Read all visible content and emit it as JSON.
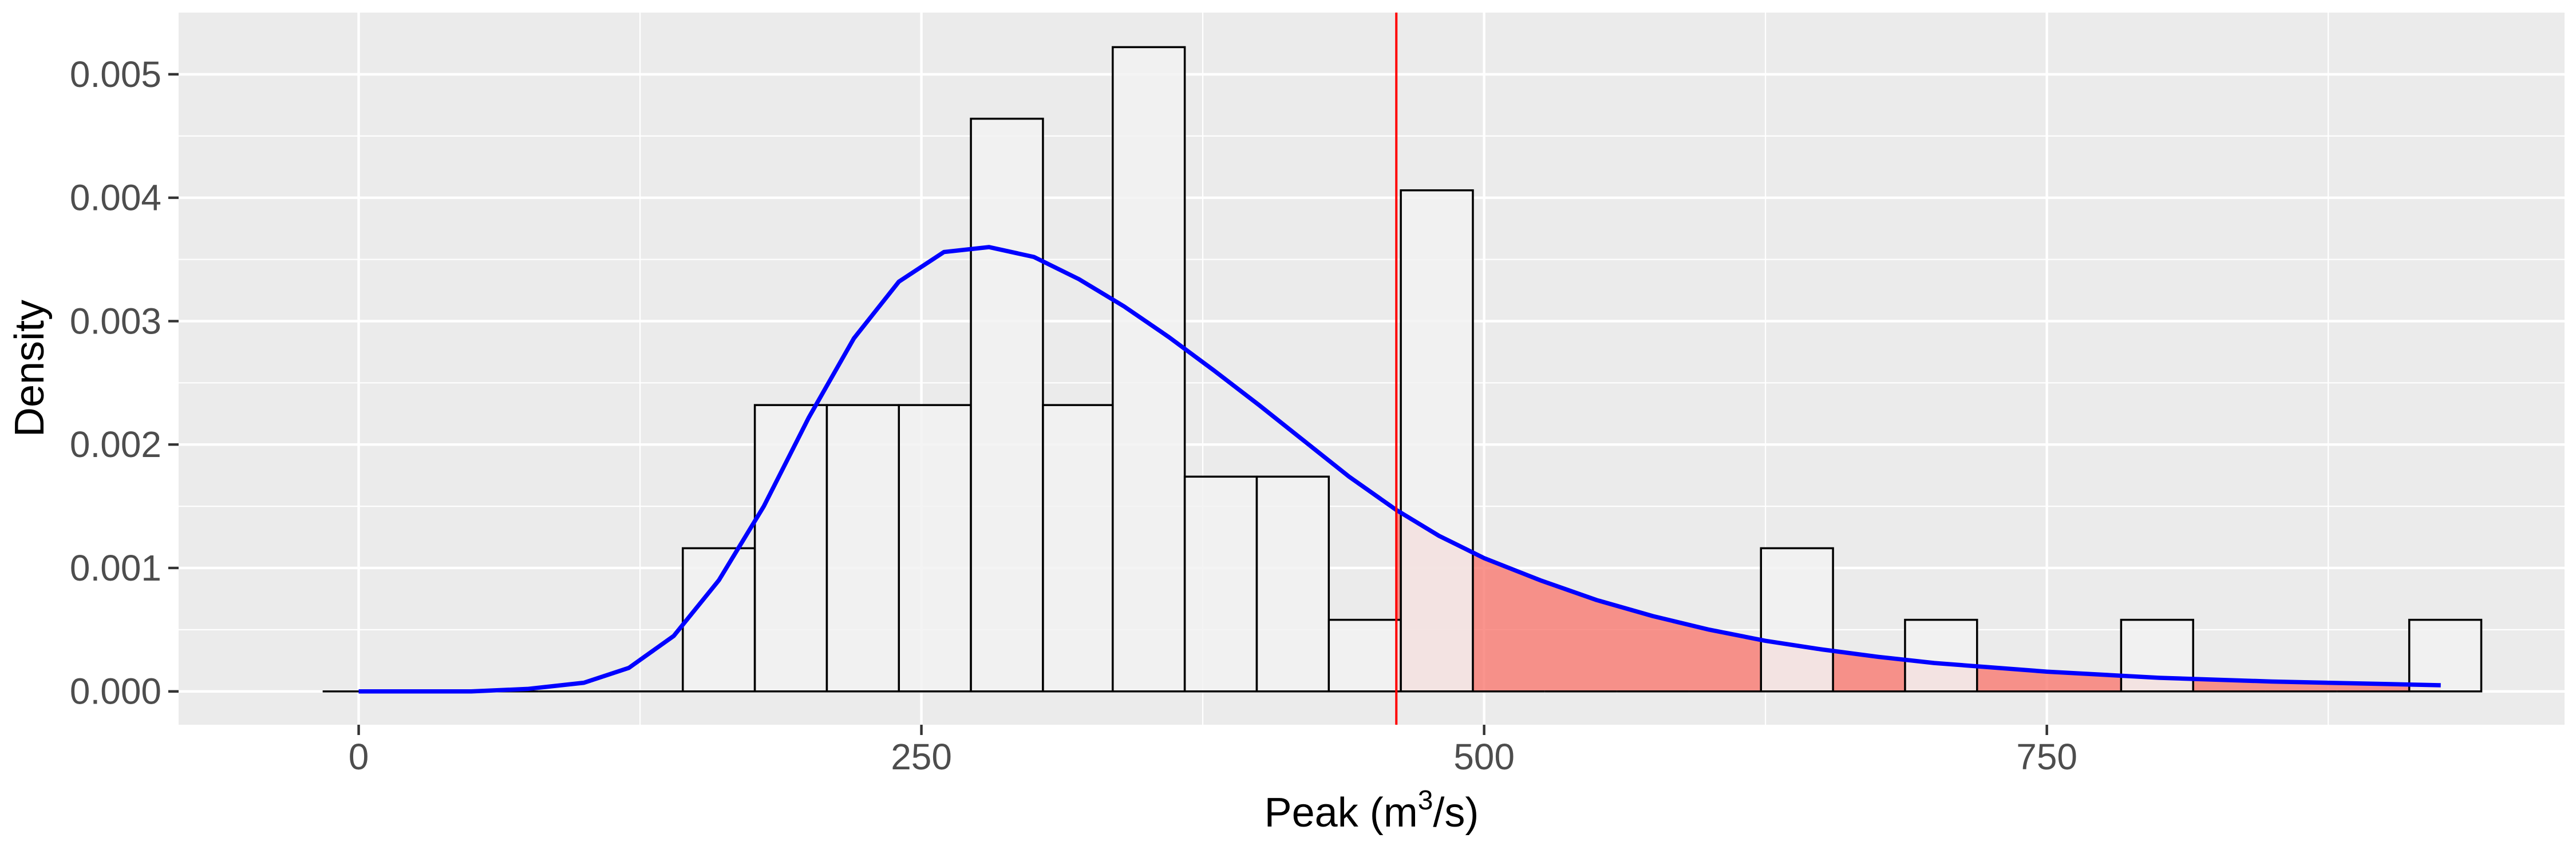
{
  "chart_data": {
    "type": "histogram",
    "xlabel": "Peak (m",
    "xlabel_sup": "3",
    "xlabel_tail": "/s)",
    "ylabel": "Density",
    "xlim": [
      -80,
      980
    ],
    "ylim": [
      -0.00027,
      0.0055
    ],
    "x_ticks": [
      0,
      250,
      500,
      750
    ],
    "x_tick_labels": [
      "0",
      "250",
      "500",
      "750"
    ],
    "y_ticks": [
      0,
      0.001,
      0.002,
      0.003,
      0.004,
      0.005
    ],
    "y_tick_labels": [
      "0.000",
      "0.001",
      "0.002",
      "0.003",
      "0.004",
      "0.005"
    ],
    "grid": true,
    "threshold": 461,
    "colors": {
      "panel": "#EBEBEB",
      "grid": "#FFFFFF",
      "bar_fill": "#F2F2F2",
      "bar_edge": "#000000",
      "density_line": "#0000FF",
      "threshold_line": "#FF0000",
      "tail_fill": "#F8766D"
    },
    "histogram": {
      "bin_edges": [
        -16,
        16,
        48,
        80,
        112,
        144,
        176,
        208,
        240,
        272,
        304,
        335,
        367,
        399,
        431,
        463,
        495,
        527,
        559,
        591,
        623,
        655,
        687,
        719,
        751,
        783,
        815,
        847,
        879,
        911,
        943
      ],
      "density": [
        0,
        0,
        0,
        0,
        0,
        0.00116,
        0.00232,
        0.00232,
        0.00232,
        0.00464,
        0.00232,
        0.00522,
        0.00174,
        0.00174,
        0.00058,
        0.00406,
        0,
        0,
        0,
        0,
        0.00116,
        0,
        0.00058,
        0,
        0,
        0.00058,
        0,
        0,
        0,
        0.00058
      ]
    },
    "density_curve": {
      "x": [
        0,
        25,
        50,
        75,
        100,
        120,
        140,
        160,
        180,
        200,
        220,
        240,
        260,
        280,
        300,
        320,
        340,
        360,
        380,
        400,
        420,
        440,
        461,
        480,
        500,
        525,
        550,
        575,
        600,
        625,
        650,
        675,
        700,
        750,
        800,
        850,
        900,
        925
      ],
      "y": [
        0,
        0,
        0,
        2e-05,
        7e-05,
        0.00019,
        0.00045,
        0.0009,
        0.0015,
        0.00222,
        0.00286,
        0.00332,
        0.00356,
        0.0036,
        0.00352,
        0.00334,
        0.00312,
        0.00287,
        0.0026,
        0.00232,
        0.00203,
        0.00174,
        0.00147,
        0.00126,
        0.00108,
        0.0009,
        0.00074,
        0.00061,
        0.0005,
        0.00041,
        0.00034,
        0.00028,
        0.00023,
        0.00016,
        0.00011,
        8e-05,
        6e-05,
        5e-05
      ]
    }
  }
}
